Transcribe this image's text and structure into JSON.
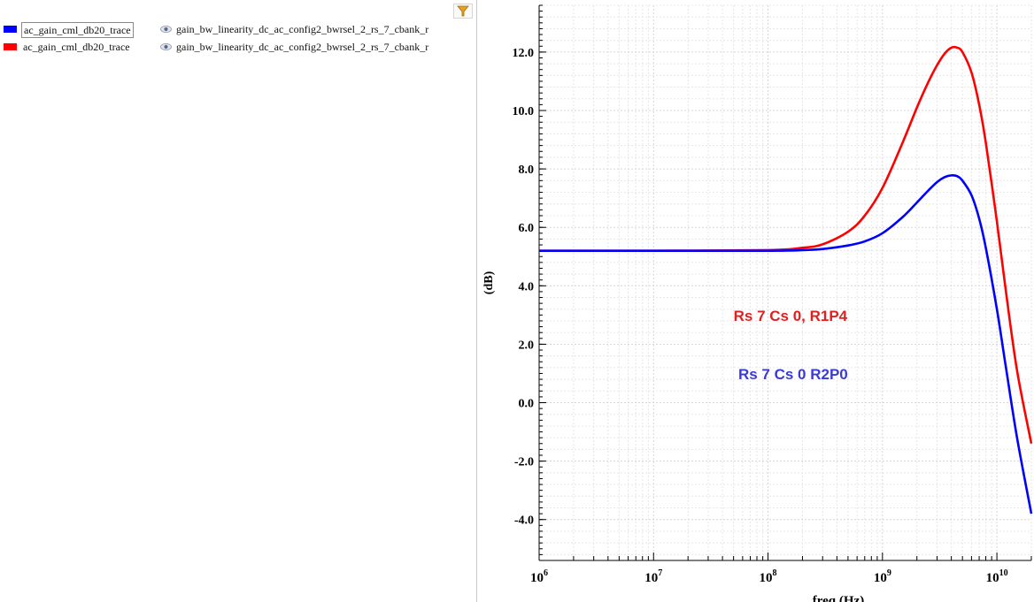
{
  "legend": {
    "rows": [
      {
        "trace": "ac_gain_cml_db20_trace",
        "dataset": "gain_bw_linearity_dc_ac_config2_bwrsel_2_rs_7_cbank_r",
        "color": "#0000ff"
      },
      {
        "trace": "ac_gain_cml_db20_trace",
        "dataset": "gain_bw_linearity_dc_ac_config2_bwrsel_2_rs_7_cbank_r",
        "color": "#ff0000"
      }
    ]
  },
  "chart_data": {
    "type": "line",
    "title": "",
    "xlabel": "freq (Hz)",
    "ylabel": "(dB)",
    "xscale": "log",
    "xlim": [
      1000000,
      20000000000
    ],
    "ylim": [
      -5.4,
      13.6
    ],
    "grid": true,
    "x_ticks": [
      {
        "base": "10",
        "exp": "6"
      },
      {
        "base": "10",
        "exp": "7"
      },
      {
        "base": "10",
        "exp": "8"
      },
      {
        "base": "10",
        "exp": "9"
      },
      {
        "base": "10",
        "exp": "10"
      }
    ],
    "y_ticks": [
      "-4.0",
      "-2.0",
      "0.0",
      "2.0",
      "4.0",
      "6.0",
      "8.0",
      "10.0",
      "12.0"
    ],
    "series": [
      {
        "name": "Rs 7 Cs 0, R1P4",
        "color": "#ff0000",
        "x": [
          1000000,
          10000000,
          100000000,
          200000000,
          300000000,
          500000000,
          700000000,
          1000000000,
          1500000000,
          2000000000,
          2500000000,
          3000000000,
          3500000000,
          4000000000,
          4500000000,
          5000000000,
          6000000000,
          7000000000,
          8000000000,
          10000000000,
          12000000000,
          15000000000,
          20000000000
        ],
        "y": [
          5.2,
          5.2,
          5.22,
          5.3,
          5.42,
          5.85,
          6.4,
          7.35,
          8.9,
          10.1,
          10.95,
          11.55,
          11.95,
          12.15,
          12.15,
          12.0,
          11.3,
          10.2,
          8.9,
          6.2,
          3.8,
          1.1,
          -1.4
        ]
      },
      {
        "name": "Rs 7 Cs 0  R2P0",
        "color": "#0000ff",
        "x": [
          1000000,
          10000000,
          100000000,
          200000000,
          300000000,
          500000000,
          700000000,
          1000000000,
          1500000000,
          2000000000,
          2500000000,
          3000000000,
          3500000000,
          4000000000,
          4500000000,
          5000000000,
          6000000000,
          7000000000,
          8000000000,
          10000000000,
          12000000000,
          15000000000,
          20000000000
        ],
        "y": [
          5.2,
          5.2,
          5.2,
          5.22,
          5.26,
          5.38,
          5.52,
          5.8,
          6.35,
          6.85,
          7.25,
          7.55,
          7.72,
          7.78,
          7.75,
          7.6,
          7.1,
          6.3,
          5.3,
          3.2,
          1.2,
          -1.2,
          -3.8
        ]
      }
    ],
    "annotations": [
      {
        "text": "Rs 7 Cs 0, R1P4",
        "color": "#e02020",
        "x": 50000000,
        "y": 2.8
      },
      {
        "text": "Rs 7 Cs 0  R2P0",
        "color": "#3a3ad8",
        "x": 55000000,
        "y": 0.8
      }
    ]
  }
}
